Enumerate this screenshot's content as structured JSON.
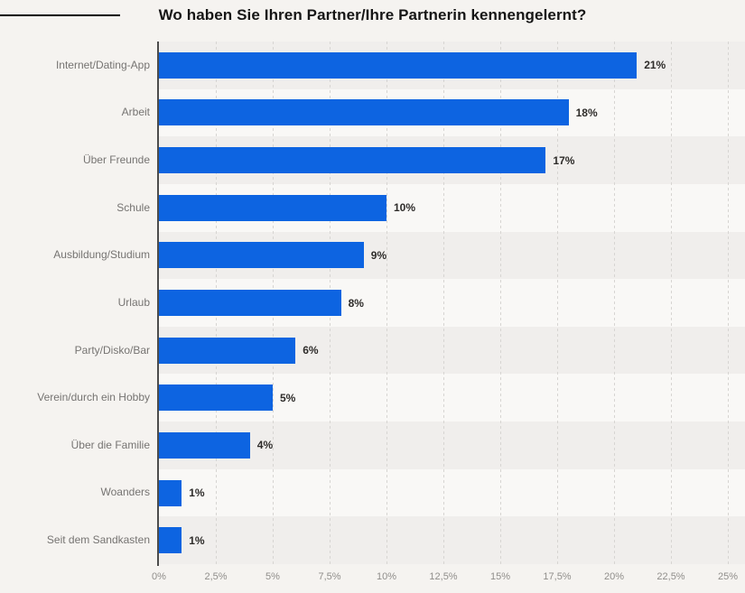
{
  "title": "Wo haben Sie Ihren Partner/Ihre Partnerin kennengelernt?",
  "decorations": {
    "top_left_line_color": "#000000"
  },
  "colors": {
    "background": "#f5f3f0",
    "bar": "#0d64e1",
    "stripe_dark": "#f0eeec",
    "stripe_light": "#f9f8f6",
    "gridline": "#d7d5d2",
    "axis_line": "#4c4c4c",
    "category_label": "#767472",
    "value_label": "#2e2c2a",
    "tick_label": "#908e8b"
  },
  "chart_data": {
    "type": "bar",
    "orientation": "horizontal",
    "title": "Wo haben Sie Ihren Partner/Ihre Partnerin kennengelernt?",
    "categories": [
      "Internet/Dating-App",
      "Arbeit",
      "Über Freunde",
      "Schule",
      "Ausbildung/Studium",
      "Urlaub",
      "Party/Disko/Bar",
      "Verein/durch ein Hobby",
      "Über die Familie",
      "Woanders",
      "Seit dem Sandkasten"
    ],
    "values": [
      21,
      18,
      17,
      10,
      9,
      8,
      6,
      5,
      4,
      1,
      1
    ],
    "value_labels": [
      "21%",
      "18%",
      "17%",
      "10%",
      "9%",
      "8%",
      "6%",
      "5%",
      "4%",
      "1%",
      "1%"
    ],
    "xlabel": "",
    "ylabel": "",
    "xlim": [
      0,
      25
    ],
    "x_tick_values": [
      0,
      2.5,
      5,
      7.5,
      10,
      12.5,
      15,
      17.5,
      20,
      22.5,
      25
    ],
    "x_tick_labels": [
      "0%",
      "2,5%",
      "5%",
      "7,5%",
      "10%",
      "12,5%",
      "15%",
      "17,5%",
      "20%",
      "22,5%",
      "25%"
    ],
    "grid": "vertical-dashed",
    "legend_position": "none",
    "row_stripes": true
  }
}
